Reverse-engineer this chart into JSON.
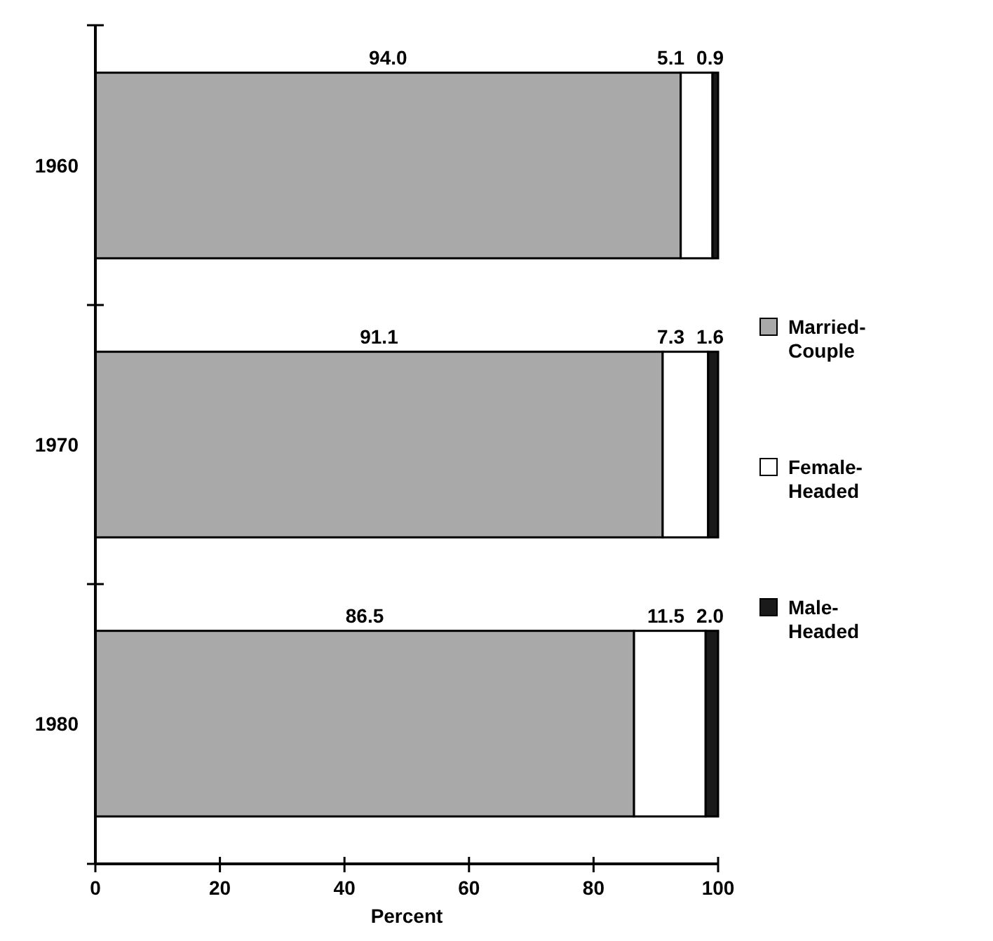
{
  "chart_data": {
    "type": "bar",
    "orientation": "horizontal",
    "stacked": true,
    "categories": [
      "1960",
      "1970",
      "1980"
    ],
    "series": [
      {
        "name": "Married-Couple",
        "color": "#a9a9a9",
        "values": [
          94.0,
          91.1,
          86.5
        ],
        "value_labels": [
          "94.0",
          "91.1",
          "86.5"
        ]
      },
      {
        "name": "Female-Headed",
        "color": "#ffffff",
        "values": [
          5.1,
          7.3,
          11.5
        ],
        "value_labels": [
          "5.1",
          "7.3",
          "11.5"
        ]
      },
      {
        "name": "Male-Headed",
        "color": "#1a1a1a",
        "values": [
          0.9,
          1.6,
          2.0
        ],
        "value_labels": [
          "0.9",
          "1.6",
          "2.0"
        ]
      }
    ],
    "xlim": [
      0,
      100
    ],
    "xticks": [
      0,
      20,
      40,
      60,
      80,
      100
    ],
    "xlabel": "Percent",
    "legend": "right",
    "grid": false
  }
}
